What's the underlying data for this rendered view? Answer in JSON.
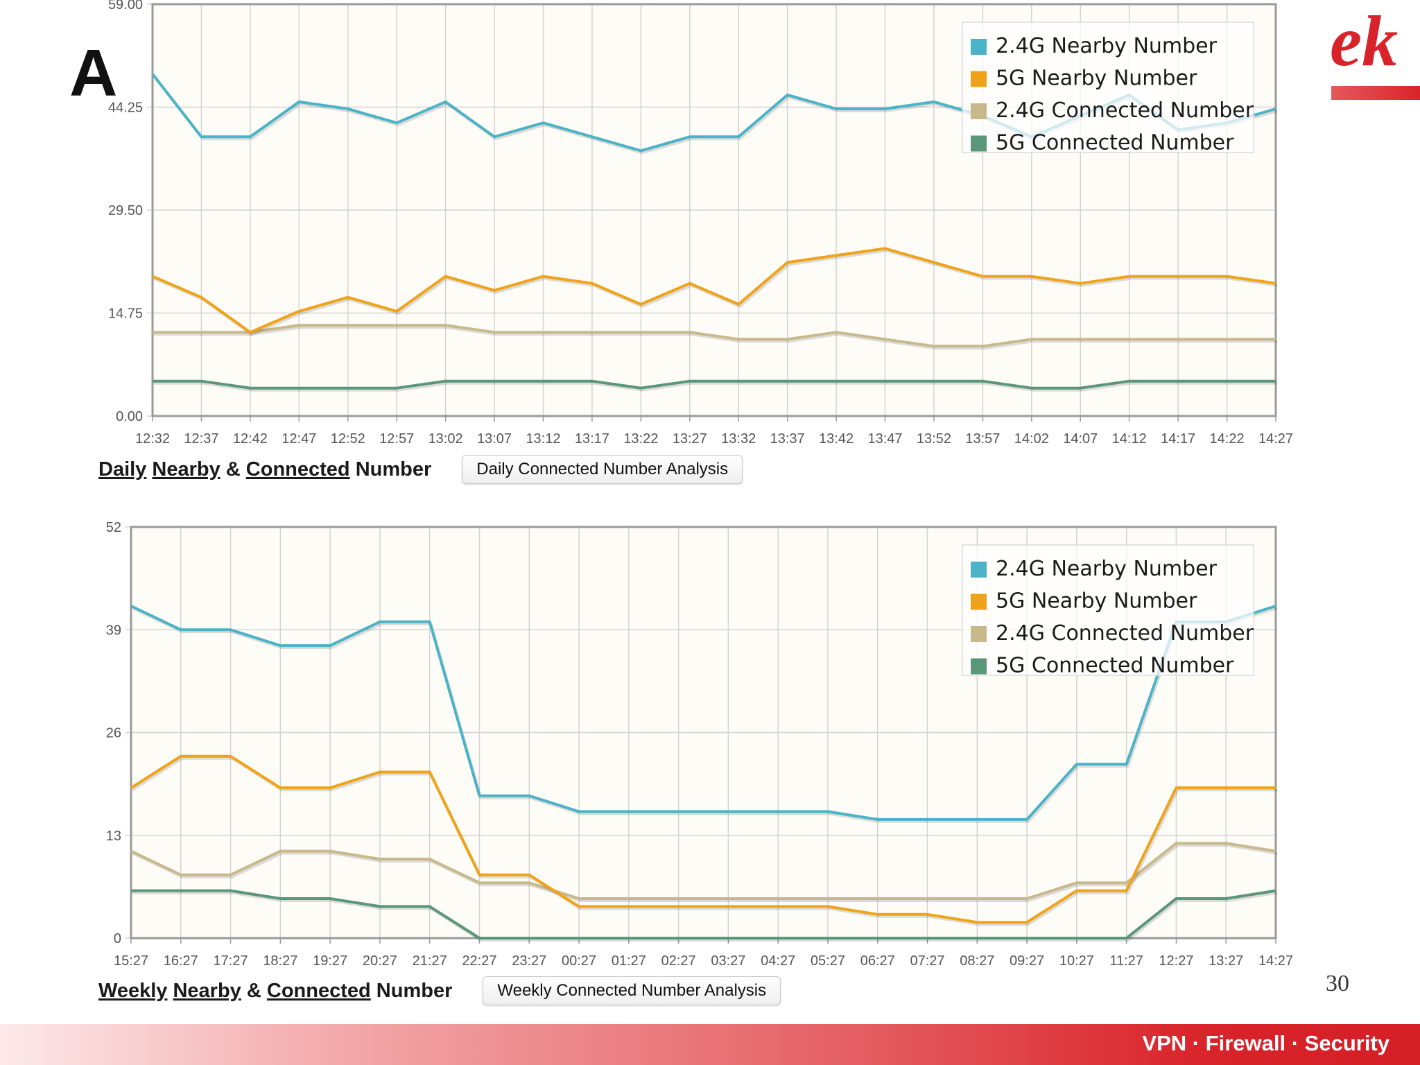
{
  "slide": {
    "title_fragment": "A",
    "brand_fragment": "ek",
    "page_number": "30",
    "footer_tagline": "VPN · Firewall · Security"
  },
  "colors": {
    "nearby_24g": "#4bb3c8",
    "nearby_5g": "#f0a318",
    "connected_24g": "#c8b98a",
    "connected_5g": "#5a9678",
    "plot_bg": "#fdfcf7",
    "grid": "#d3d3d3",
    "axis": "#9a9a9a",
    "accent": "#d9232a"
  },
  "daily": {
    "caption_words": [
      "Daily",
      "Nearby",
      "Connected"
    ],
    "caption_amp": "&",
    "caption_tail": "Number",
    "button_label": "Daily Connected Number Analysis"
  },
  "weekly": {
    "caption_words": [
      "Weekly",
      "Nearby",
      "Connected"
    ],
    "caption_amp": "&",
    "caption_tail": "Number",
    "button_label": "Weekly Connected Number Analysis"
  },
  "chart_data": [
    {
      "type": "line",
      "title": "Daily Nearby & Connected Number",
      "xlabel": "",
      "ylabel": "",
      "ylim": [
        0,
        59
      ],
      "yticks": [
        "0.00",
        "14.75",
        "29.50",
        "44.25",
        "59.00"
      ],
      "grid": true,
      "legend_position": "top-right",
      "categories": [
        "12:32",
        "12:37",
        "12:42",
        "12:47",
        "12:52",
        "12:57",
        "13:02",
        "13:07",
        "13:12",
        "13:17",
        "13:22",
        "13:27",
        "13:32",
        "13:37",
        "13:42",
        "13:47",
        "13:52",
        "13:57",
        "14:02",
        "14:07",
        "14:12",
        "14:17",
        "14:22",
        "14:27"
      ],
      "series": [
        {
          "name": "2.4G Nearby Number",
          "color_key": "nearby_24g",
          "values": [
            49,
            40,
            40,
            45,
            44,
            42,
            45,
            40,
            42,
            40,
            38,
            40,
            40,
            46,
            44,
            44,
            45,
            43,
            40,
            43,
            46,
            41,
            42,
            44
          ]
        },
        {
          "name": "5G Nearby Number",
          "color_key": "nearby_5g",
          "values": [
            20,
            17,
            12,
            15,
            17,
            15,
            20,
            18,
            20,
            19,
            16,
            19,
            16,
            22,
            23,
            24,
            22,
            20,
            20,
            19,
            20,
            20,
            20,
            19
          ]
        },
        {
          "name": "2.4G Connected Number",
          "color_key": "connected_24g",
          "values": [
            12,
            12,
            12,
            13,
            13,
            13,
            13,
            12,
            12,
            12,
            12,
            12,
            11,
            11,
            12,
            11,
            10,
            10,
            11,
            11,
            11,
            11,
            11,
            11
          ]
        },
        {
          "name": "5G Connected Number",
          "color_key": "connected_5g",
          "values": [
            5,
            5,
            4,
            4,
            4,
            4,
            5,
            5,
            5,
            5,
            4,
            5,
            5,
            5,
            5,
            5,
            5,
            5,
            4,
            4,
            5,
            5,
            5,
            5
          ]
        }
      ]
    },
    {
      "type": "line",
      "title": "Weekly Nearby & Connected Number",
      "xlabel": "",
      "ylabel": "",
      "ylim": [
        0,
        52
      ],
      "yticks": [
        "0",
        "13",
        "26",
        "39",
        "52"
      ],
      "grid": true,
      "legend_position": "top-right",
      "categories": [
        "15:27",
        "16:27",
        "17:27",
        "18:27",
        "19:27",
        "20:27",
        "21:27",
        "22:27",
        "23:27",
        "00:27",
        "01:27",
        "02:27",
        "03:27",
        "04:27",
        "05:27",
        "06:27",
        "07:27",
        "08:27",
        "09:27",
        "10:27",
        "11:27",
        "12:27",
        "13:27",
        "14:27"
      ],
      "series": [
        {
          "name": "2.4G Nearby Number",
          "color_key": "nearby_24g",
          "values": [
            42,
            39,
            39,
            37,
            37,
            40,
            40,
            18,
            18,
            16,
            16,
            16,
            16,
            16,
            16,
            15,
            15,
            15,
            15,
            22,
            22,
            40,
            40,
            42
          ]
        },
        {
          "name": "5G Nearby Number",
          "color_key": "nearby_5g",
          "values": [
            19,
            23,
            23,
            19,
            19,
            21,
            21,
            8,
            8,
            4,
            4,
            4,
            4,
            4,
            4,
            3,
            3,
            2,
            2,
            6,
            6,
            19,
            19,
            19
          ]
        },
        {
          "name": "2.4G Connected Number",
          "color_key": "connected_24g",
          "values": [
            11,
            8,
            8,
            11,
            11,
            10,
            10,
            7,
            7,
            5,
            5,
            5,
            5,
            5,
            5,
            5,
            5,
            5,
            5,
            7,
            7,
            12,
            12,
            11
          ]
        },
        {
          "name": "5G Connected Number",
          "color_key": "connected_5g",
          "values": [
            6,
            6,
            6,
            5,
            5,
            4,
            4,
            0,
            0,
            0,
            0,
            0,
            0,
            0,
            0,
            0,
            0,
            0,
            0,
            0,
            0,
            5,
            5,
            6
          ]
        }
      ]
    }
  ]
}
